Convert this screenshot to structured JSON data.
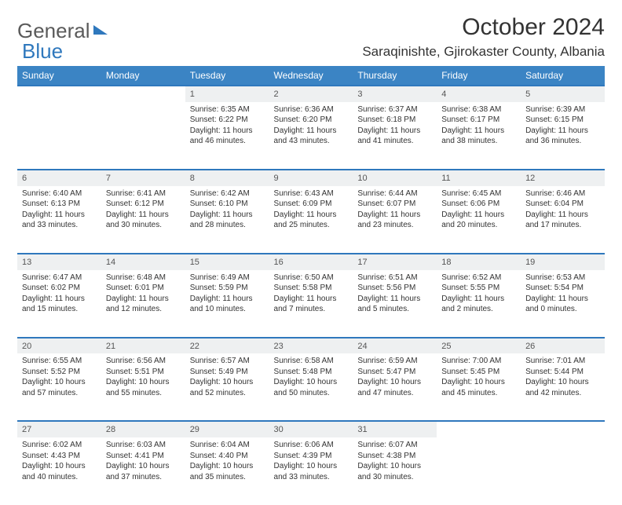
{
  "brand": {
    "part1": "General",
    "part2": "Blue"
  },
  "title": "October 2024",
  "location": "Saraqinishte, Gjirokaster County, Albania",
  "colors": {
    "header_bg": "#3b84c4",
    "header_text": "#ffffff",
    "row_border": "#2f78bd",
    "daynum_bg": "#eef0f1",
    "body_text": "#333333",
    "logo_gray": "#5a5a5a",
    "logo_blue": "#2f78bd",
    "page_bg": "#ffffff"
  },
  "weekdays": [
    "Sunday",
    "Monday",
    "Tuesday",
    "Wednesday",
    "Thursday",
    "Friday",
    "Saturday"
  ],
  "weeks": [
    [
      null,
      null,
      {
        "n": "1",
        "sr": "6:35 AM",
        "ss": "6:22 PM",
        "dl": "11 hours and 46 minutes."
      },
      {
        "n": "2",
        "sr": "6:36 AM",
        "ss": "6:20 PM",
        "dl": "11 hours and 43 minutes."
      },
      {
        "n": "3",
        "sr": "6:37 AM",
        "ss": "6:18 PM",
        "dl": "11 hours and 41 minutes."
      },
      {
        "n": "4",
        "sr": "6:38 AM",
        "ss": "6:17 PM",
        "dl": "11 hours and 38 minutes."
      },
      {
        "n": "5",
        "sr": "6:39 AM",
        "ss": "6:15 PM",
        "dl": "11 hours and 36 minutes."
      }
    ],
    [
      {
        "n": "6",
        "sr": "6:40 AM",
        "ss": "6:13 PM",
        "dl": "11 hours and 33 minutes."
      },
      {
        "n": "7",
        "sr": "6:41 AM",
        "ss": "6:12 PM",
        "dl": "11 hours and 30 minutes."
      },
      {
        "n": "8",
        "sr": "6:42 AM",
        "ss": "6:10 PM",
        "dl": "11 hours and 28 minutes."
      },
      {
        "n": "9",
        "sr": "6:43 AM",
        "ss": "6:09 PM",
        "dl": "11 hours and 25 minutes."
      },
      {
        "n": "10",
        "sr": "6:44 AM",
        "ss": "6:07 PM",
        "dl": "11 hours and 23 minutes."
      },
      {
        "n": "11",
        "sr": "6:45 AM",
        "ss": "6:06 PM",
        "dl": "11 hours and 20 minutes."
      },
      {
        "n": "12",
        "sr": "6:46 AM",
        "ss": "6:04 PM",
        "dl": "11 hours and 17 minutes."
      }
    ],
    [
      {
        "n": "13",
        "sr": "6:47 AM",
        "ss": "6:02 PM",
        "dl": "11 hours and 15 minutes."
      },
      {
        "n": "14",
        "sr": "6:48 AM",
        "ss": "6:01 PM",
        "dl": "11 hours and 12 minutes."
      },
      {
        "n": "15",
        "sr": "6:49 AM",
        "ss": "5:59 PM",
        "dl": "11 hours and 10 minutes."
      },
      {
        "n": "16",
        "sr": "6:50 AM",
        "ss": "5:58 PM",
        "dl": "11 hours and 7 minutes."
      },
      {
        "n": "17",
        "sr": "6:51 AM",
        "ss": "5:56 PM",
        "dl": "11 hours and 5 minutes."
      },
      {
        "n": "18",
        "sr": "6:52 AM",
        "ss": "5:55 PM",
        "dl": "11 hours and 2 minutes."
      },
      {
        "n": "19",
        "sr": "6:53 AM",
        "ss": "5:54 PM",
        "dl": "11 hours and 0 minutes."
      }
    ],
    [
      {
        "n": "20",
        "sr": "6:55 AM",
        "ss": "5:52 PM",
        "dl": "10 hours and 57 minutes."
      },
      {
        "n": "21",
        "sr": "6:56 AM",
        "ss": "5:51 PM",
        "dl": "10 hours and 55 minutes."
      },
      {
        "n": "22",
        "sr": "6:57 AM",
        "ss": "5:49 PM",
        "dl": "10 hours and 52 minutes."
      },
      {
        "n": "23",
        "sr": "6:58 AM",
        "ss": "5:48 PM",
        "dl": "10 hours and 50 minutes."
      },
      {
        "n": "24",
        "sr": "6:59 AM",
        "ss": "5:47 PM",
        "dl": "10 hours and 47 minutes."
      },
      {
        "n": "25",
        "sr": "7:00 AM",
        "ss": "5:45 PM",
        "dl": "10 hours and 45 minutes."
      },
      {
        "n": "26",
        "sr": "7:01 AM",
        "ss": "5:44 PM",
        "dl": "10 hours and 42 minutes."
      }
    ],
    [
      {
        "n": "27",
        "sr": "6:02 AM",
        "ss": "4:43 PM",
        "dl": "10 hours and 40 minutes."
      },
      {
        "n": "28",
        "sr": "6:03 AM",
        "ss": "4:41 PM",
        "dl": "10 hours and 37 minutes."
      },
      {
        "n": "29",
        "sr": "6:04 AM",
        "ss": "4:40 PM",
        "dl": "10 hours and 35 minutes."
      },
      {
        "n": "30",
        "sr": "6:06 AM",
        "ss": "4:39 PM",
        "dl": "10 hours and 33 minutes."
      },
      {
        "n": "31",
        "sr": "6:07 AM",
        "ss": "4:38 PM",
        "dl": "10 hours and 30 minutes."
      },
      null,
      null
    ]
  ],
  "labels": {
    "sunrise": "Sunrise:",
    "sunset": "Sunset:",
    "daylight": "Daylight:"
  }
}
